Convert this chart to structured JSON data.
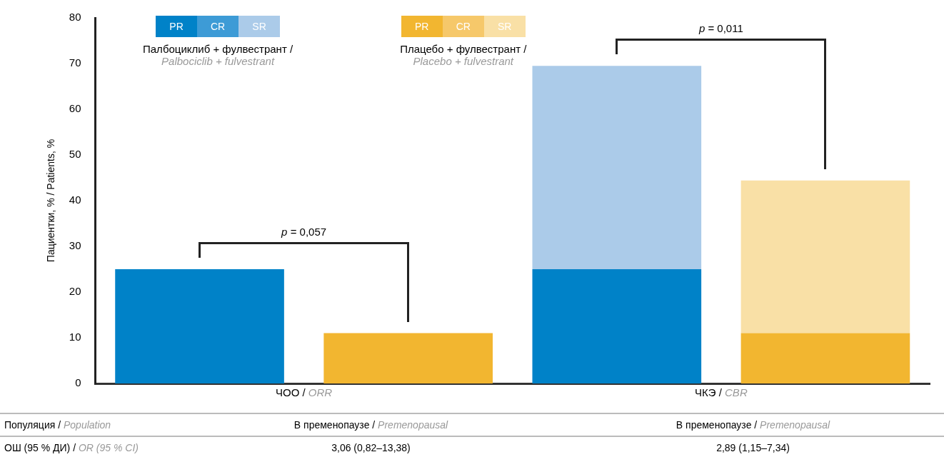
{
  "chart_data": {
    "type": "bar",
    "stacked": true,
    "ylabel": "Пациентки, % / Patients, %",
    "legend_title": [
      "Палбоциклиб + фулвестрант / Palbociclib + fulvestrant",
      "Плацебо + фулвестрант / Placebo + fulvestrant"
    ],
    "categories": [
      "ЧОО / ORR",
      null,
      "ЧКЭ / CBR",
      null
    ],
    "series": [
      {
        "name": "PR",
        "colors": [
          "#0082c8",
          "#f2b630",
          "#0082c8",
          "#f2b630"
        ],
        "values": [
          25,
          11,
          25,
          11
        ]
      },
      {
        "name": "CR",
        "colors": [
          "#3d9bd6",
          "#f6c86a",
          "#3d9bd6",
          "#f6c86a"
        ],
        "values": [
          null,
          null,
          null,
          null
        ]
      },
      {
        "name": "SR",
        "colors": [
          "#abcbe9",
          "#f9e0a6",
          "#abcbe9",
          "#f9e0a6"
        ],
        "values": [
          null,
          null,
          44.5,
          33.4
        ]
      }
    ],
    "ylim": [
      0,
      80
    ],
    "yticks": [
      0,
      10,
      20,
      30,
      40,
      50,
      60,
      70,
      80
    ],
    "grid": false,
    "legend": "top",
    "annotations": [
      "p = 0,057",
      "p = 0,011",
      "Популяция / Population",
      "В пременопаузе / Premenopausal",
      "В пременопаузе / Premenopausal",
      "ОШ (95 % ДИ) / OR (95 % CI)",
      "3,06 (0,82–13,38)",
      "2,89 (1,15–7,34)"
    ]
  }
}
